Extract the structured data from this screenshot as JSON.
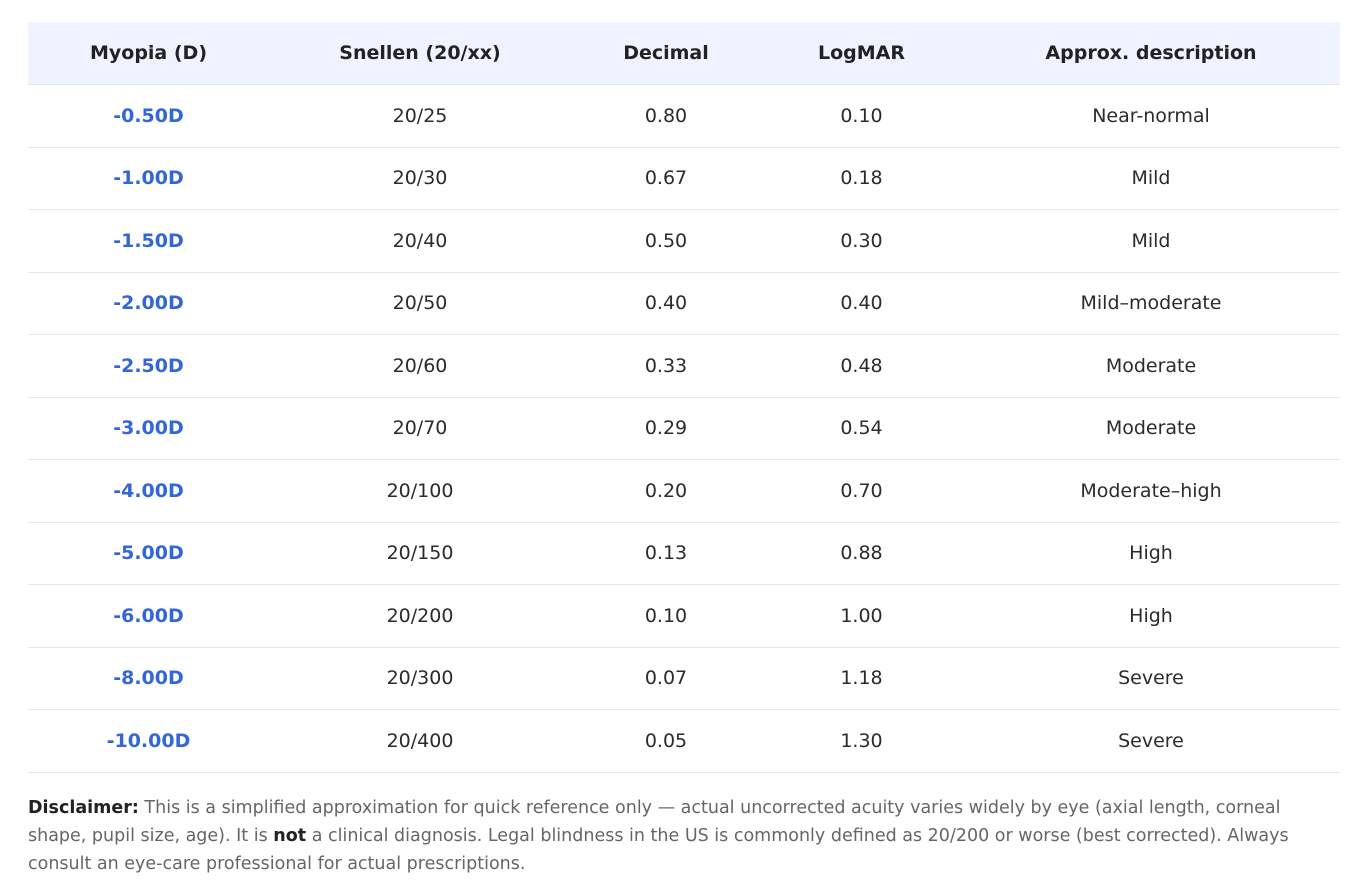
{
  "table": {
    "headers": [
      "Myopia (D)",
      "Snellen (20/xx)",
      "Decimal",
      "LogMAR",
      "Approx. description"
    ],
    "rows": [
      [
        "-0.50D",
        "20/25",
        "0.80",
        "0.10",
        "Near-normal"
      ],
      [
        "-1.00D",
        "20/30",
        "0.67",
        "0.18",
        "Mild"
      ],
      [
        "-1.50D",
        "20/40",
        "0.50",
        "0.30",
        "Mild"
      ],
      [
        "-2.00D",
        "20/50",
        "0.40",
        "0.40",
        "Mild–moderate"
      ],
      [
        "-2.50D",
        "20/60",
        "0.33",
        "0.48",
        "Moderate"
      ],
      [
        "-3.00D",
        "20/70",
        "0.29",
        "0.54",
        "Moderate"
      ],
      [
        "-4.00D",
        "20/100",
        "0.20",
        "0.70",
        "Moderate–high"
      ],
      [
        "-5.00D",
        "20/150",
        "0.13",
        "0.88",
        "High"
      ],
      [
        "-6.00D",
        "20/200",
        "0.10",
        "1.00",
        "High"
      ],
      [
        "-8.00D",
        "20/300",
        "0.07",
        "1.18",
        "Severe"
      ],
      [
        "-10.00D",
        "20/400",
        "0.05",
        "1.30",
        "Severe"
      ]
    ]
  },
  "disclaimer": {
    "label": "Disclaimer:",
    "text_1": " This is a simplified approximation for quick reference only — actual uncorrected acuity varies widely by eye (axial length, corneal shape, pupil size, age). It is ",
    "emphasis": "not",
    "text_2": " a clinical diagnosis. Legal blindness in the US is commonly defined as 20/200 or worse (best corrected). Always consult an eye-care professional for actual prescriptions."
  },
  "colors": {
    "header_bg": "#eef3ff",
    "myopia_text": "#3366d6",
    "row_divider": "#e6e8ec"
  }
}
